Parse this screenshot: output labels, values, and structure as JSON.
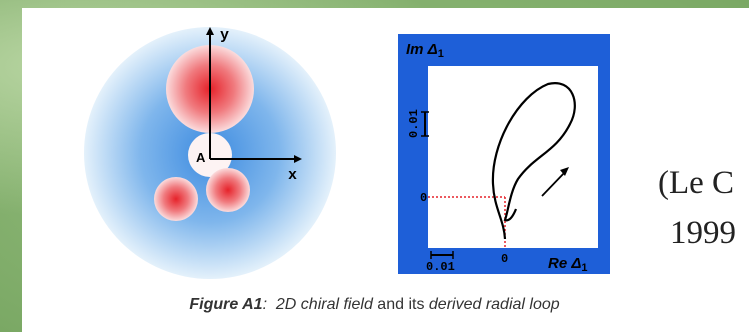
{
  "colors": {
    "background_green": "#8fb87a",
    "panel": "#ffffff",
    "plot_frame": "#1e5fd8",
    "blob_red": "#e6222a",
    "halo_blue": "#3d8be0"
  },
  "field_figure": {
    "y_axis_label": "y",
    "x_axis_label": "x",
    "origin_label": "A"
  },
  "loop_figure": {
    "y_axis_label": "Im Δ",
    "y_axis_subscript": "1",
    "x_axis_label": "Re Δ",
    "x_axis_subscript": "1",
    "y_scale_label": "0.01",
    "x_scale_label": "0.01",
    "y_zero_label": "0",
    "x_zero_label": "0"
  },
  "citation": {
    "line1": "(Le C",
    "line2": "1999"
  },
  "caption": {
    "figure_label": "Figure A1",
    "colon": ":",
    "field_text": "2D chiral field",
    "and_its": "and its",
    "loop_text": "derived radial loop"
  }
}
